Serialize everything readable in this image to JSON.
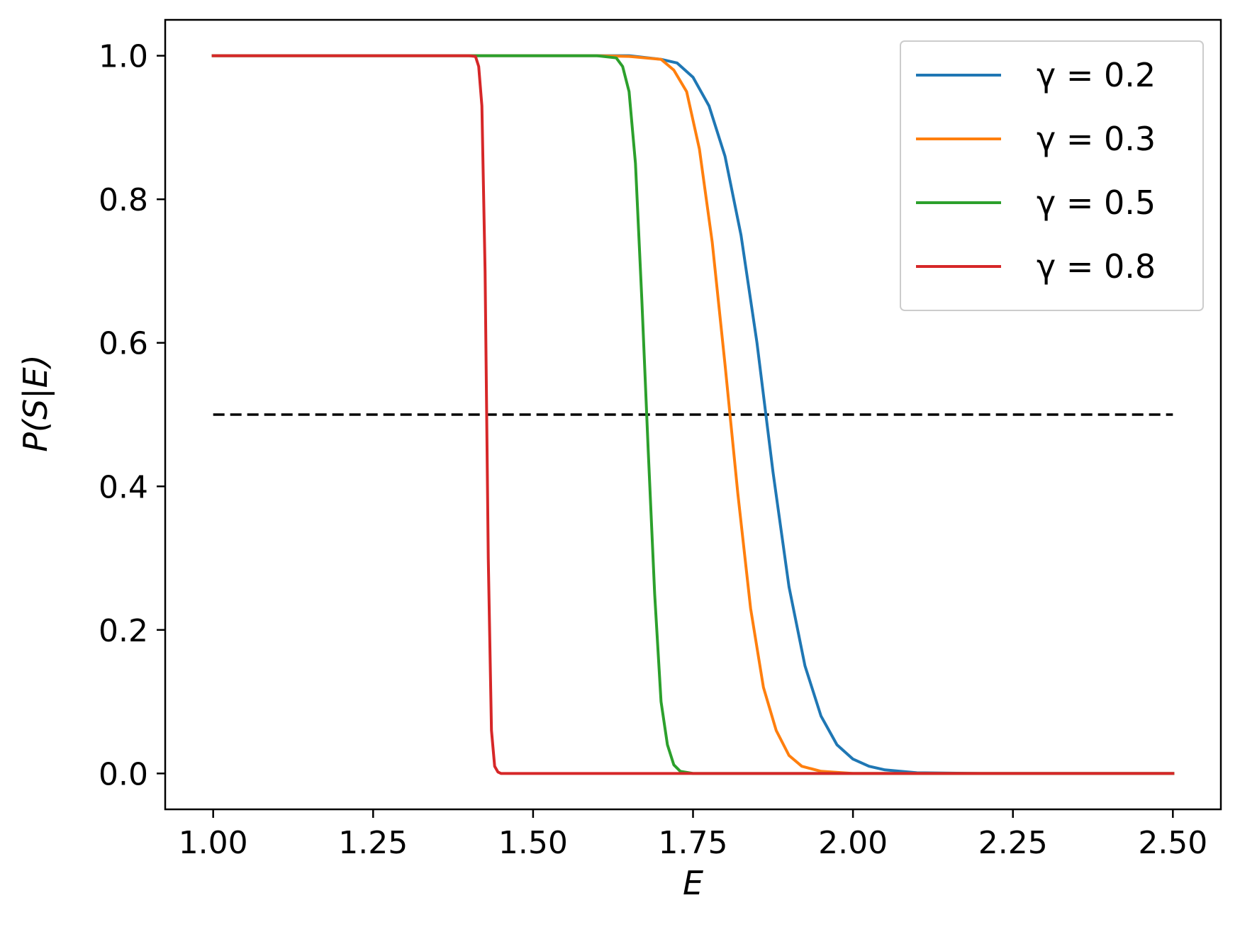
{
  "chart_data": {
    "type": "line",
    "xlabel": "E",
    "ylabel": "P(S|E)",
    "xlim": [
      0.925,
      2.575
    ],
    "ylim": [
      -0.05,
      1.05
    ],
    "xticks": [
      1.0,
      1.25,
      1.5,
      1.75,
      2.0,
      2.25,
      2.5
    ],
    "xtick_labels": [
      "1.00",
      "1.25",
      "1.50",
      "1.75",
      "2.00",
      "2.25",
      "2.50"
    ],
    "yticks": [
      0.0,
      0.2,
      0.4,
      0.6,
      0.8,
      1.0
    ],
    "ytick_labels": [
      "0.0",
      "0.2",
      "0.4",
      "0.6",
      "0.8",
      "1.0"
    ],
    "grid": false,
    "legend_position": "top-right",
    "series": [
      {
        "name": "γ =  0.2",
        "color": "#1f77b4",
        "x": [
          1.0,
          1.6,
          1.65,
          1.7,
          1.725,
          1.75,
          1.775,
          1.8,
          1.825,
          1.85,
          1.875,
          1.9,
          1.925,
          1.95,
          1.975,
          2.0,
          2.025,
          2.05,
          2.1,
          2.2,
          2.5
        ],
        "y": [
          1.0,
          1.0,
          1.0,
          0.995,
          0.99,
          0.97,
          0.93,
          0.86,
          0.75,
          0.6,
          0.42,
          0.26,
          0.15,
          0.08,
          0.04,
          0.02,
          0.01,
          0.005,
          0.001,
          0.0,
          0.0
        ]
      },
      {
        "name": "γ =  0.3",
        "color": "#ff7f0e",
        "x": [
          1.0,
          1.6,
          1.65,
          1.7,
          1.72,
          1.74,
          1.76,
          1.78,
          1.8,
          1.82,
          1.84,
          1.86,
          1.88,
          1.9,
          1.92,
          1.95,
          2.0,
          2.1,
          2.5
        ],
        "y": [
          1.0,
          1.0,
          0.999,
          0.995,
          0.98,
          0.95,
          0.87,
          0.74,
          0.57,
          0.39,
          0.23,
          0.12,
          0.06,
          0.025,
          0.01,
          0.003,
          0.0,
          0.0,
          0.0
        ]
      },
      {
        "name": "γ =  0.5",
        "color": "#2ca02c",
        "x": [
          1.0,
          1.6,
          1.63,
          1.64,
          1.65,
          1.66,
          1.67,
          1.68,
          1.69,
          1.7,
          1.71,
          1.72,
          1.73,
          1.75,
          1.8,
          2.5
        ],
        "y": [
          1.0,
          1.0,
          0.997,
          0.985,
          0.95,
          0.85,
          0.66,
          0.45,
          0.25,
          0.1,
          0.04,
          0.012,
          0.003,
          0.0,
          0.0,
          0.0
        ]
      },
      {
        "name": "γ =  0.8",
        "color": "#d62728",
        "x": [
          1.0,
          1.4,
          1.41,
          1.415,
          1.42,
          1.425,
          1.43,
          1.435,
          1.44,
          1.445,
          1.45,
          1.46,
          2.5
        ],
        "y": [
          1.0,
          1.0,
          0.999,
          0.985,
          0.93,
          0.7,
          0.3,
          0.06,
          0.01,
          0.002,
          0.0,
          0.0,
          0.0
        ]
      }
    ],
    "reference_line": {
      "y": 0.5,
      "x_start": 1.0,
      "x_end": 2.5,
      "style": "dashed",
      "color": "#000000"
    }
  }
}
